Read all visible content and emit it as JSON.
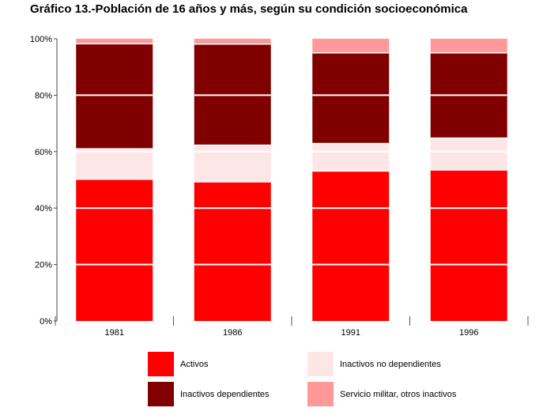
{
  "chart_data": {
    "type": "bar",
    "stacked": true,
    "title": "Gráfico 13.-Población de 16 años y más, según su condición socioeconómica",
    "categories": [
      "1981",
      "1986",
      "1991",
      "1996"
    ],
    "y_ticks": [
      "0%",
      "20%",
      "40%",
      "60%",
      "80%",
      "100%"
    ],
    "ylim": [
      0,
      100
    ],
    "grid": false,
    "legend_position": "bottom",
    "series": [
      {
        "name": "Activos",
        "color": "#ff0000",
        "values": [
          50.2,
          49.3,
          53.1,
          53.5
        ]
      },
      {
        "name": "Inactivos no dependientes",
        "color": "#ffe6e6",
        "values": [
          10.8,
          13.0,
          9.8,
          11.3
        ]
      },
      {
        "name": "Inactivos dependientes",
        "color": "#800000",
        "values": [
          37.2,
          35.8,
          32.1,
          30.2
        ]
      },
      {
        "name": "Servicio militar, otros inactivos",
        "color": "#ff9999",
        "values": [
          1.8,
          1.9,
          5.0,
          5.0
        ]
      }
    ]
  }
}
